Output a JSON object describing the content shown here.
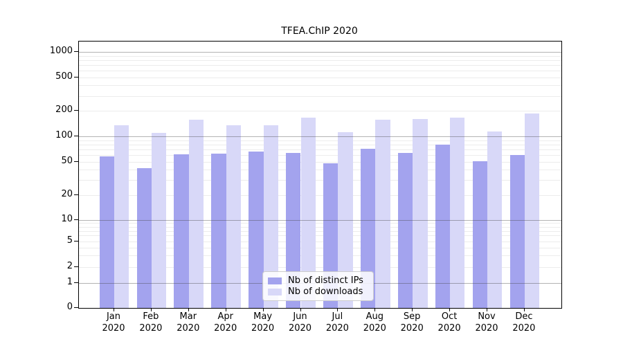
{
  "chart_data": {
    "type": "bar",
    "title": "TFEA.ChIP 2020",
    "yscale": "symlog",
    "grid": "both",
    "legend_position": "lower-center",
    "categories": [
      "Jan",
      "Feb",
      "Mar",
      "Apr",
      "May",
      "Jun",
      "Jul",
      "Aug",
      "Sep",
      "Oct",
      "Nov",
      "Dec"
    ],
    "category_year": "2020",
    "yticks": [
      0,
      1,
      2,
      5,
      10,
      20,
      50,
      100,
      200,
      500,
      1000
    ],
    "ylim": [
      0,
      1330
    ],
    "series": [
      {
        "name": "Nb of distinct IPs",
        "color": "#a3a3ee",
        "values": [
          58,
          42,
          61,
          62,
          66,
          63,
          48,
          71,
          63,
          80,
          51,
          60
        ]
      },
      {
        "name": "Nb of downloads",
        "color": "#d8d8f8",
        "values": [
          134,
          109,
          158,
          134,
          136,
          167,
          112,
          157,
          161,
          166,
          114,
          186
        ]
      }
    ]
  },
  "legend": {
    "items": [
      {
        "label": "Nb of distinct IPs"
      },
      {
        "label": "Nb of downloads"
      }
    ]
  }
}
